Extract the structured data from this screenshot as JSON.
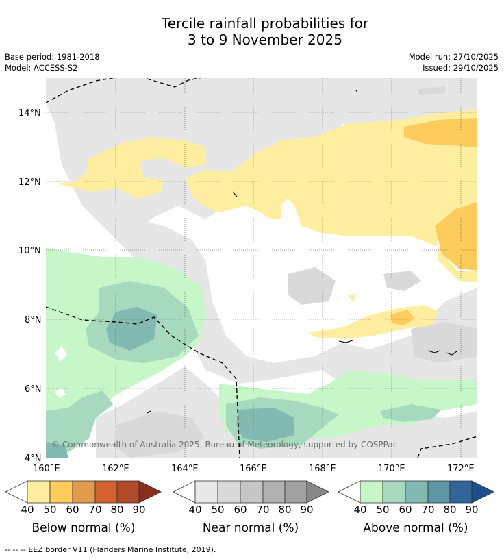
{
  "title_line1": "Tercile rainfall probabilities for",
  "title_line2": "3 to 9 November 2025",
  "base_period": "Base period: 1981-2018",
  "model": "Model: ACCESS-S2",
  "model_run": "Model run: 27/10/2025",
  "issued": "Issued: 29/10/2025",
  "copyright": "© Commonwealth of Australia 2025, Bureau of Meteorology, supported by COSPPac",
  "lat_labels": [
    "14°N",
    "12°N",
    "10°N",
    "8°N",
    "6°N",
    "4°N"
  ],
  "lon_labels": [
    "160°E",
    "162°E",
    "164°E",
    "166°E",
    "168°E",
    "170°E",
    "172°E"
  ],
  "legends": [
    {
      "label": "Below normal (%)",
      "ticks": [
        "40",
        "50",
        "60",
        "70",
        "80",
        "90"
      ],
      "colors": [
        "#ffeda0",
        "#fecc5c",
        "#e49a4b",
        "#d3622f",
        "#b14a2a",
        "#8b2d1c"
      ]
    },
    {
      "label": "Near normal (%)",
      "ticks": [
        "40",
        "50",
        "60",
        "70",
        "80",
        "90"
      ],
      "colors": [
        "#e8e8e8",
        "#d9d9d9",
        "#c6c6c6",
        "#b1b1b1",
        "#a1a1a1",
        "#878787"
      ]
    },
    {
      "label": "Above normal (%)",
      "ticks": [
        "40",
        "50",
        "60",
        "70",
        "80",
        "90"
      ],
      "colors": [
        "#c7f6c9",
        "#a6d9be",
        "#82b9b1",
        "#5e97a4",
        "#33659a",
        "#1f4e8c"
      ]
    }
  ],
  "footer": "-- -- -- EEZ border V11 (Flanders Marine Institute, 2019)."
}
